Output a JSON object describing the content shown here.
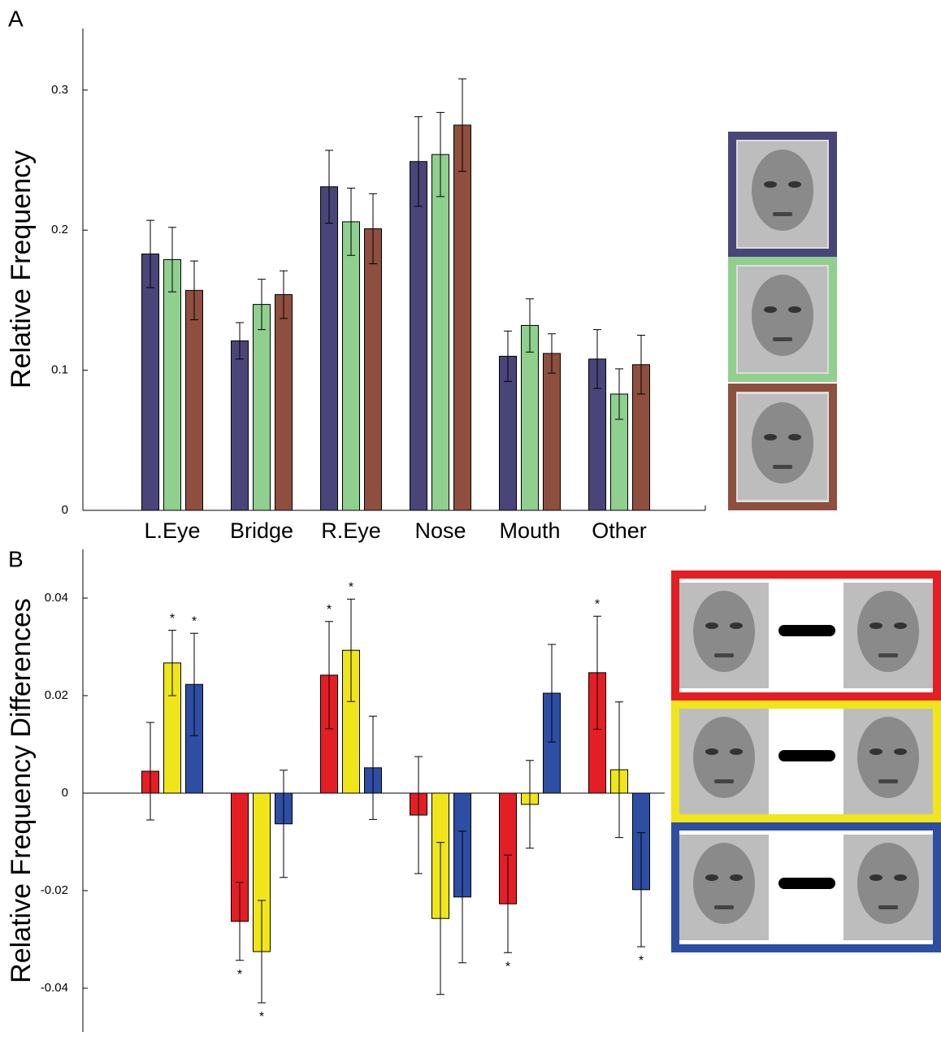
{
  "chart_data": [
    {
      "type": "bar",
      "panel": "A",
      "ylabel": "Relative Frequency",
      "categories": [
        "L.Eye",
        "Bridge",
        "R.Eye",
        "Nose",
        "Mouth",
        "Other"
      ],
      "series": [
        {
          "color": "#4a4578",
          "values": [
            0.183,
            0.121,
            0.231,
            0.249,
            0.11,
            0.108
          ],
          "errors": [
            0.024,
            0.013,
            0.026,
            0.032,
            0.018,
            0.021
          ]
        },
        {
          "color": "#8fd08f",
          "values": [
            0.179,
            0.147,
            0.206,
            0.254,
            0.132,
            0.083
          ],
          "errors": [
            0.023,
            0.018,
            0.024,
            0.03,
            0.019,
            0.018
          ]
        },
        {
          "color": "#8e4f3e",
          "values": [
            0.157,
            0.154,
            0.201,
            0.275,
            0.112,
            0.104
          ],
          "errors": [
            0.021,
            0.017,
            0.025,
            0.033,
            0.014,
            0.021
          ]
        }
      ],
      "ylim": [
        0,
        0.344
      ],
      "yticks": [
        0,
        0.1,
        0.2,
        0.3
      ]
    },
    {
      "type": "bar",
      "panel": "B",
      "ylabel": "Relative Frequency  Differences",
      "marker": "*",
      "series": [
        {
          "color": "#e31e24",
          "values": [
            0.0045,
            -0.0263,
            0.0242,
            -0.0045,
            -0.0227,
            0.0247
          ],
          "errors": [
            0.01,
            0.008,
            0.011,
            0.012,
            0.01,
            0.0116
          ],
          "significant": [
            false,
            true,
            true,
            false,
            true,
            true
          ]
        },
        {
          "color": "#f0e51a",
          "values": [
            0.0267,
            -0.0325,
            0.0293,
            -0.0257,
            -0.0023,
            0.0048
          ],
          "errors": [
            0.0067,
            0.0105,
            0.0105,
            0.0156,
            0.009,
            0.0139
          ],
          "significant": [
            true,
            true,
            true,
            false,
            false,
            false
          ]
        },
        {
          "color": "#2e4ea3",
          "values": [
            0.0223,
            -0.0063,
            0.0052,
            -0.0213,
            0.0205,
            -0.0198
          ],
          "errors": [
            0.0105,
            0.011,
            0.0106,
            0.0135,
            0.01,
            0.0117
          ],
          "significant": [
            true,
            false,
            false,
            false,
            false,
            true
          ]
        }
      ],
      "ylim": [
        -0.049,
        0.05
      ],
      "yticks": [
        -0.04,
        -0.02,
        0,
        0.02,
        0.04
      ]
    }
  ]
}
